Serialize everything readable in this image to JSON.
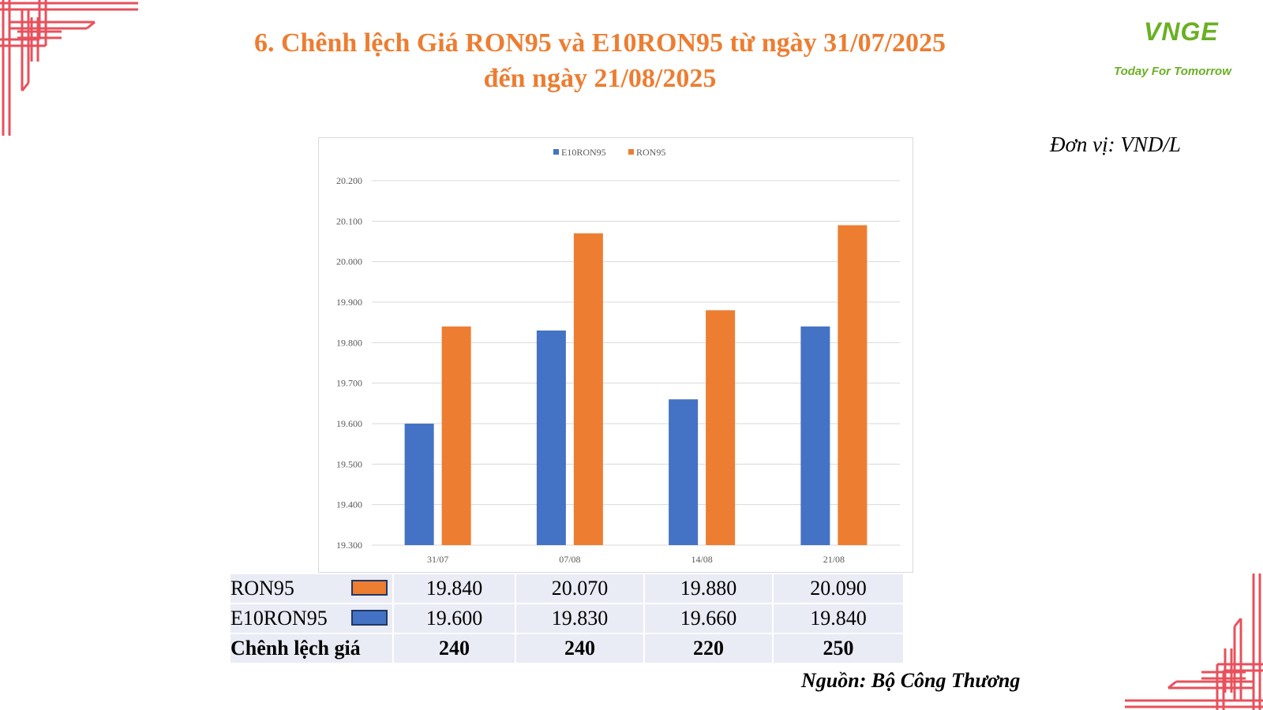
{
  "title_line1": "6. Chênh lệch Giá RON95 và E10RON95 từ ngày 31/07/2025",
  "title_line2": "đến ngày 21/08/2025",
  "logo": {
    "mark": "VNGE",
    "tagline": "Today For Tomorrow"
  },
  "unit": "Đơn vị: VND/L",
  "source": "Nguồn: Bộ Công Thương",
  "colors": {
    "E10RON95": "#4472C4",
    "RON95": "#ED7D31",
    "accent": "#ED7D31",
    "frame": "#E8505B"
  },
  "chart_data": {
    "type": "bar",
    "categories": [
      "31/07",
      "07/08",
      "14/08",
      "21/08"
    ],
    "series": [
      {
        "name": "E10RON95",
        "values": [
          19600,
          19830,
          19660,
          19840
        ]
      },
      {
        "name": "RON95",
        "values": [
          19840,
          20070,
          19880,
          20090
        ]
      }
    ],
    "ylim": [
      19300,
      20200
    ],
    "yticks": [
      "19.300",
      "19.400",
      "19.500",
      "19.600",
      "19.700",
      "19.800",
      "19.900",
      "20.000",
      "20.100",
      "20.200"
    ],
    "legend": "top-center",
    "grid": true
  },
  "table": {
    "rows": [
      {
        "label": "RON95",
        "values": [
          "19.840",
          "20.070",
          "19.880",
          "20.090"
        ]
      },
      {
        "label": "E10RON95",
        "values": [
          "19.600",
          "19.830",
          "19.660",
          "19.840"
        ]
      },
      {
        "label": "Chênh lệch giá",
        "values": [
          "240",
          "240",
          "220",
          "250"
        ]
      }
    ]
  }
}
